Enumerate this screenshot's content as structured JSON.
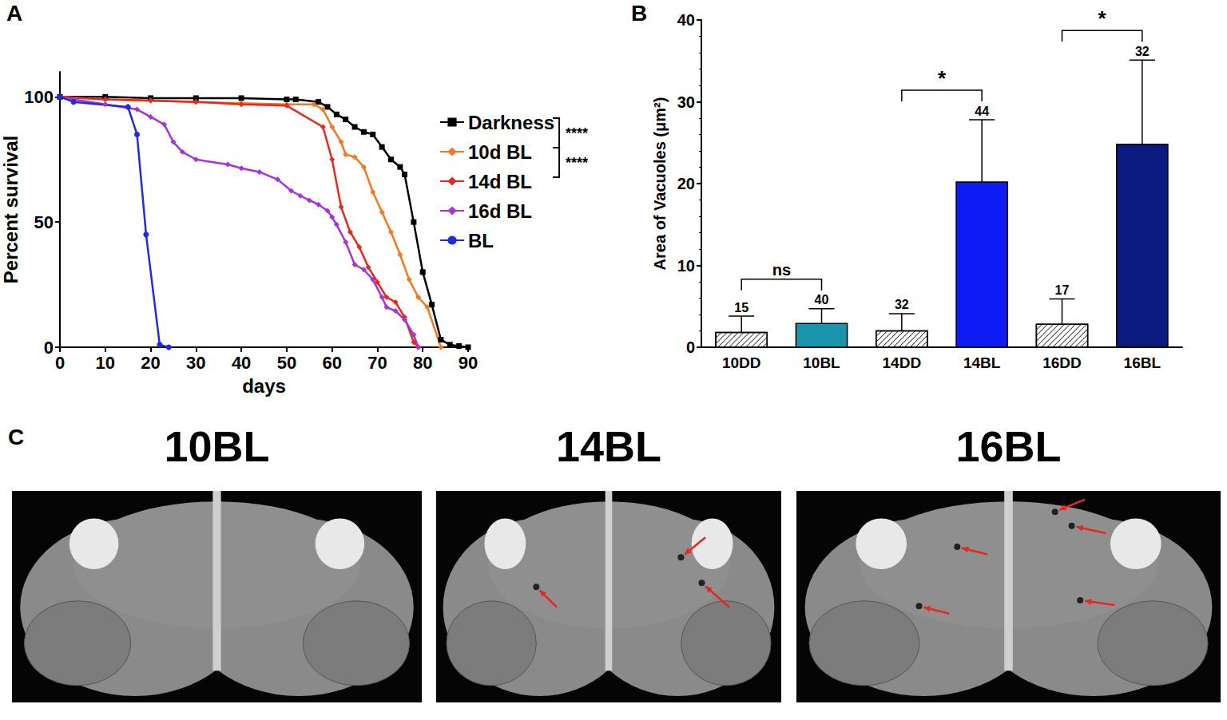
{
  "chart_data": [
    {
      "panel": "A",
      "type": "line",
      "xlabel": "days",
      "ylabel": "Percent survival",
      "xlim": [
        0,
        90
      ],
      "xticks": [
        0,
        10,
        20,
        30,
        40,
        50,
        60,
        70,
        80,
        90
      ],
      "ylim": [
        0,
        110
      ],
      "yticks": [
        0,
        50,
        100
      ],
      "grid": false,
      "legend": "right",
      "series": [
        {
          "name": "Darkness",
          "color": "#000000",
          "marker": "square",
          "x": [
            0,
            10,
            20,
            30,
            40,
            50,
            52,
            57,
            59,
            61,
            63,
            65,
            67,
            69,
            71,
            73,
            75,
            76,
            78,
            80,
            82,
            84,
            86,
            88,
            90
          ],
          "values": [
            100,
            100,
            99.5,
            99.5,
            99.5,
            99,
            99,
            98,
            96,
            93,
            91,
            88,
            86,
            85,
            80,
            75,
            72,
            69,
            50,
            30,
            17,
            3,
            1,
            0.5,
            0
          ]
        },
        {
          "name": "10d BL",
          "color": "#f4781f",
          "marker": "diamond",
          "x": [
            0,
            10,
            20,
            30,
            40,
            50,
            56,
            58,
            60,
            62,
            63,
            65,
            67,
            69,
            71,
            73,
            75,
            77,
            79,
            81,
            84
          ],
          "values": [
            100,
            99,
            98.5,
            98,
            97.5,
            97,
            97,
            95,
            88,
            82,
            77,
            76,
            72,
            62,
            54,
            46,
            37,
            27,
            20,
            16,
            0
          ]
        },
        {
          "name": "14d BL",
          "color": "#e8281e",
          "marker": "diamond",
          "x": [
            0,
            10,
            20,
            30,
            40,
            50,
            58,
            60,
            62,
            64,
            66,
            68,
            70,
            72,
            74,
            76,
            78,
            79
          ],
          "values": [
            100,
            99,
            98.5,
            98,
            97,
            96.5,
            88,
            75,
            56,
            46,
            40,
            32,
            26,
            20,
            18,
            12,
            2,
            0
          ]
        },
        {
          "name": "16d BL",
          "color": "#a833d6",
          "marker": "diamond",
          "x": [
            0,
            3,
            10,
            17,
            20,
            23,
            25,
            27,
            30,
            37,
            40,
            44,
            48,
            51,
            53,
            55,
            57,
            59,
            60,
            61,
            63,
            65,
            67,
            69,
            71,
            72,
            74,
            76,
            78,
            79
          ],
          "values": [
            100,
            99,
            97,
            95,
            92,
            89,
            82,
            78,
            75,
            73,
            71.5,
            70,
            67,
            62.5,
            60.5,
            58.7,
            57,
            54.5,
            52,
            49,
            42,
            33,
            31,
            27,
            20,
            16,
            14.5,
            11,
            5,
            0
          ]
        },
        {
          "name": "BL",
          "color": "#1f2be0",
          "marker": "circle",
          "x": [
            0,
            3,
            15,
            17,
            19,
            22,
            24
          ],
          "values": [
            100,
            98,
            96,
            85,
            45,
            1,
            0
          ]
        }
      ],
      "significance": [
        {
          "series": [
            "Darkness",
            "10d BL"
          ],
          "label": "****"
        },
        {
          "series": [
            "10d BL",
            "14d BL"
          ],
          "label": "****"
        }
      ]
    },
    {
      "panel": "B",
      "type": "bar",
      "ylabel": "Area of Vacuoles (μm²)",
      "categories": [
        "10DD",
        "10BL",
        "14DD",
        "14BL",
        "16DD",
        "16BL"
      ],
      "values": [
        1.8,
        2.9,
        2.0,
        20.2,
        2.8,
        24.8
      ],
      "errors": [
        2.0,
        1.8,
        2.1,
        7.6,
        3.1,
        10.3
      ],
      "n": [
        15,
        40,
        32,
        44,
        17,
        32
      ],
      "colors": [
        "#ffffff",
        "#1b94ae",
        "#ffffff",
        "#0d1bf5",
        "#ffffff",
        "#0b1a80"
      ],
      "ylim": [
        0,
        40
      ],
      "yticks": [
        0,
        10,
        20,
        30,
        40
      ],
      "grid": false,
      "comparisons": [
        {
          "groups": [
            "10DD",
            "10BL"
          ],
          "label": "ns"
        },
        {
          "groups": [
            "14DD",
            "14BL"
          ],
          "label": "*"
        },
        {
          "groups": [
            "16DD",
            "16BL"
          ],
          "label": "*"
        }
      ]
    }
  ],
  "image_panel": {
    "panel": "C",
    "titles": [
      "10BL",
      "14BL",
      "16BL"
    ]
  }
}
